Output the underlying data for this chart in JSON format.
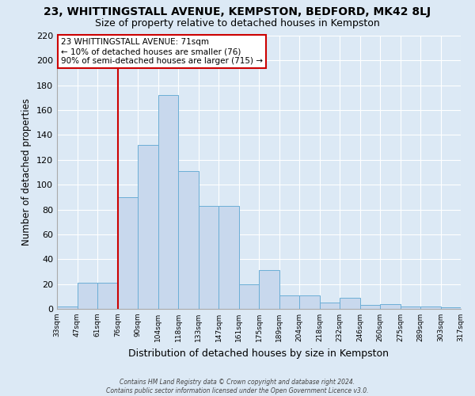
{
  "title": "23, WHITTINGSTALL AVENUE, KEMPSTON, BEDFORD, MK42 8LJ",
  "subtitle": "Size of property relative to detached houses in Kempston",
  "xlabel": "Distribution of detached houses by size in Kempston",
  "ylabel": "Number of detached properties",
  "bar_values": [
    2,
    21,
    21,
    90,
    132,
    172,
    111,
    83,
    83,
    20,
    31,
    11,
    11,
    5,
    9,
    3,
    4,
    2,
    2,
    1
  ],
  "bar_labels": [
    "33sqm",
    "47sqm",
    "61sqm",
    "76sqm",
    "90sqm",
    "104sqm",
    "118sqm",
    "133sqm",
    "147sqm",
    "161sqm",
    "175sqm",
    "189sqm",
    "204sqm",
    "218sqm",
    "232sqm",
    "246sqm",
    "260sqm",
    "275sqm",
    "289sqm",
    "303sqm",
    "317sqm"
  ],
  "bar_color": "#c8d8ed",
  "bar_edge_color": "#6baed6",
  "ylim": [
    0,
    220
  ],
  "yticks": [
    0,
    20,
    40,
    60,
    80,
    100,
    120,
    140,
    160,
    180,
    200,
    220
  ],
  "vline_color": "#cc0000",
  "vline_pos": 3,
  "annotation_title": "23 WHITTINGSTALL AVENUE: 71sqm",
  "annotation_line1": "← 10% of detached houses are smaller (76)",
  "annotation_line2": "90% of semi-detached houses are larger (715) →",
  "annotation_box_facecolor": "#ffffff",
  "annotation_box_edgecolor": "#cc0000",
  "footer1": "Contains HM Land Registry data © Crown copyright and database right 2024.",
  "footer2": "Contains public sector information licensed under the Open Government Licence v3.0.",
  "bg_color": "#dce9f5",
  "grid_color": "#ffffff",
  "spine_color": "#aaaaaa"
}
